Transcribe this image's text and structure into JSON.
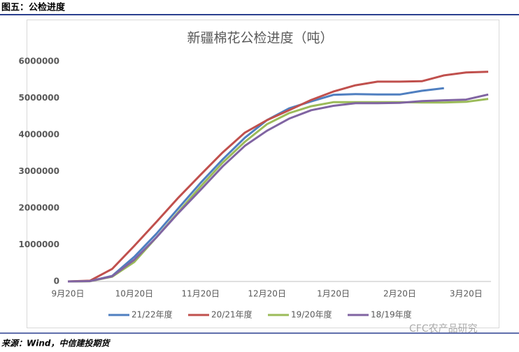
{
  "header": {
    "figure_title": "图五：公检进度"
  },
  "chart_data": {
    "type": "line",
    "title": "新疆棉花公检进度（吨）",
    "categories": [
      "9月20日",
      null,
      null,
      "10月20日",
      null,
      null,
      "11月20日",
      null,
      null,
      "12月20日",
      null,
      null,
      "1月20日",
      null,
      null,
      "2月20日",
      null,
      null,
      "3月20日",
      null
    ],
    "series": [
      {
        "name": "21/22年度",
        "color": "#4f7fc0",
        "values": [
          0,
          10000,
          150000,
          670000,
          1300000,
          2000000,
          2690000,
          3330000,
          3920000,
          4400000,
          4720000,
          4910000,
          5090000,
          5110000,
          5100000,
          5100000,
          5200000,
          5270000,
          null,
          null
        ]
      },
      {
        "name": "20/21年度",
        "color": "#c0504d",
        "values": [
          0,
          20000,
          340000,
          970000,
          1620000,
          2290000,
          2910000,
          3520000,
          4060000,
          4400000,
          4670000,
          4950000,
          5180000,
          5350000,
          5450000,
          5450000,
          5460000,
          5620000,
          5700000,
          5720000
        ]
      },
      {
        "name": "19/20年度",
        "color": "#9bbb59",
        "values": [
          0,
          5000,
          130000,
          530000,
          1200000,
          1900000,
          2590000,
          3240000,
          3810000,
          4290000,
          4590000,
          4780000,
          4890000,
          4890000,
          4890000,
          4890000,
          4880000,
          4880000,
          4900000,
          4980000
        ]
      },
      {
        "name": "18/19年度",
        "color": "#8064a2",
        "values": [
          0,
          10000,
          140000,
          590000,
          1200000,
          1870000,
          2500000,
          3140000,
          3700000,
          4110000,
          4440000,
          4670000,
          4790000,
          4860000,
          4860000,
          4870000,
          4920000,
          4940000,
          4960000,
          5100000
        ]
      }
    ],
    "ylim": [
      0,
      6000000
    ],
    "yticks": [
      0,
      1000000,
      2000000,
      3000000,
      4000000,
      5000000,
      6000000
    ],
    "grid": false
  },
  "source": "来源：Wind，中信建投期货",
  "watermark": "CFC农产品研究"
}
